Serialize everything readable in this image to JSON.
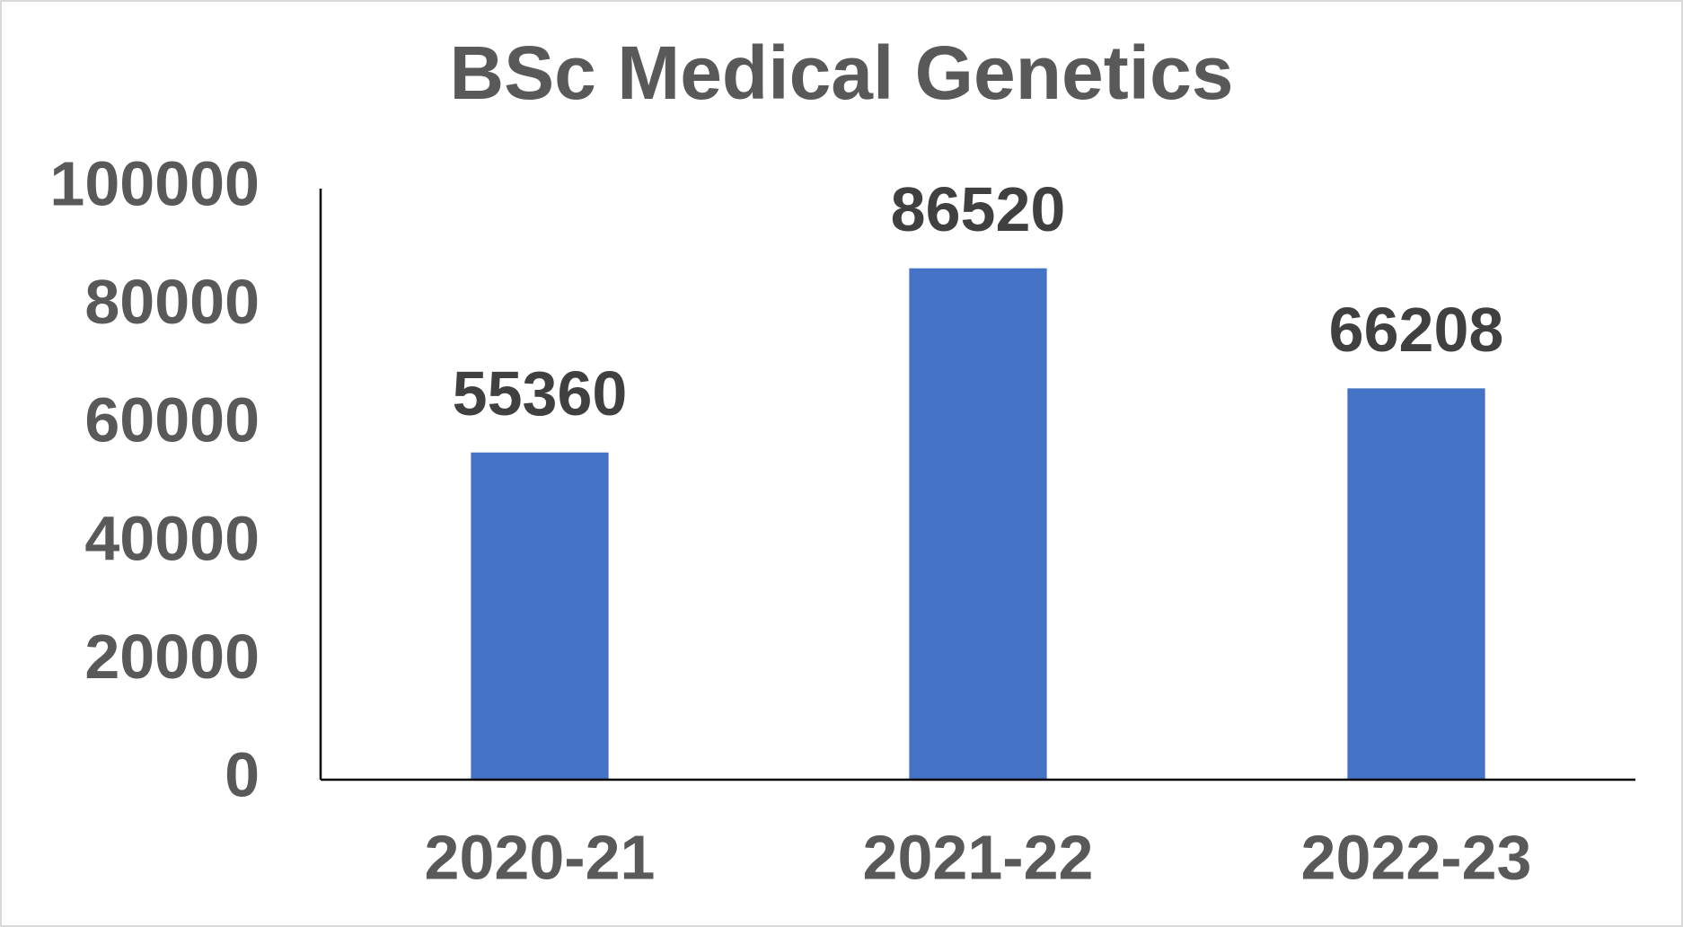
{
  "chart_data": {
    "type": "bar",
    "title": "BSc Medical Genetics",
    "categories": [
      "2020-21",
      "2021-22",
      "2022-23"
    ],
    "values": [
      55360,
      86520,
      66208
    ],
    "color": "#4472c4",
    "ylim": [
      0,
      100000
    ],
    "yticks": [
      0,
      20000,
      40000,
      60000,
      80000,
      100000
    ],
    "grid": false
  }
}
